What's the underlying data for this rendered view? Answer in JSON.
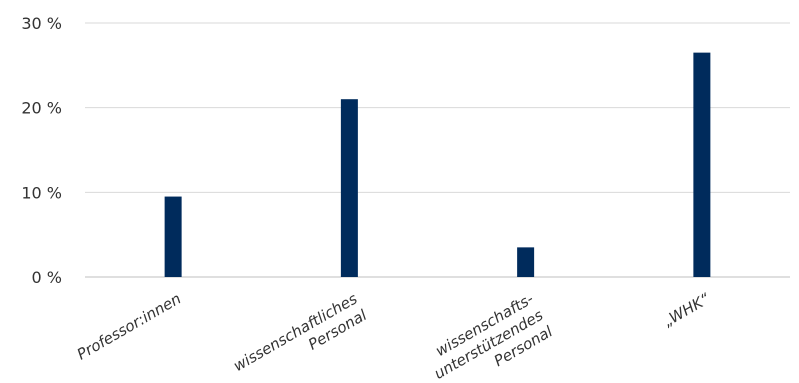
{
  "chart_data": {
    "type": "bar",
    "title": "",
    "xlabel": "",
    "ylabel": "",
    "categories": [
      [
        "Professor:innen"
      ],
      [
        "wissenschaftliches",
        "Personal"
      ],
      [
        "wissenschafts-",
        "unterstützendes",
        "Personal"
      ],
      [
        "„WHK“"
      ]
    ],
    "values": [
      9.5,
      21.0,
      3.5,
      26.5
    ],
    "ylim": [
      0,
      30
    ],
    "yticks": [
      0,
      10,
      20,
      30
    ],
    "ytick_labels": [
      "0 %",
      "10 %",
      "20 %",
      "30 %"
    ],
    "grid": true,
    "legend": "none",
    "bar_color": "#002b5c"
  }
}
